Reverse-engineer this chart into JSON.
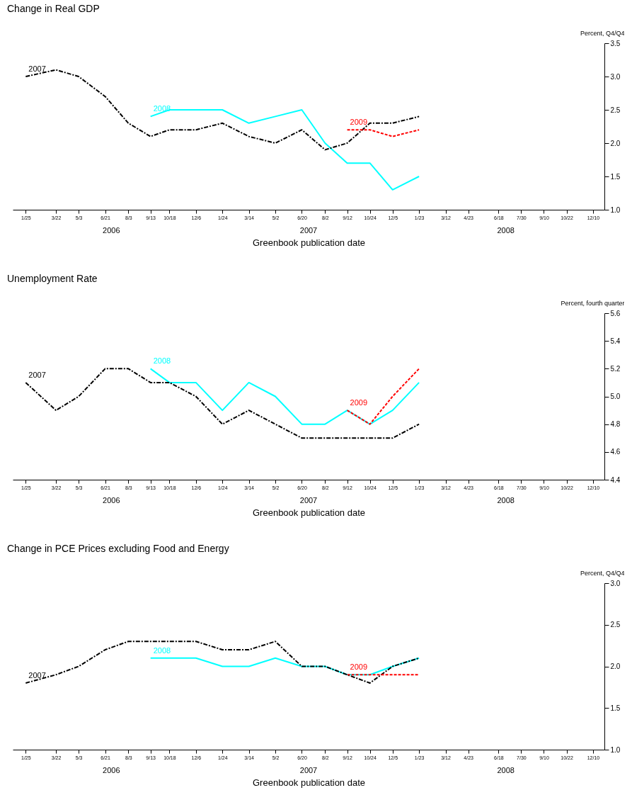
{
  "chart_data": [
    {
      "type": "line",
      "title": "Change in Real GDP",
      "xlabel": "Greenbook publication date",
      "ylabel": "Percent, Q4/Q4",
      "x": [
        "2006-01-25",
        "2006-03-22",
        "2006-05-03",
        "2006-06-21",
        "2006-08-03",
        "2006-09-13",
        "2006-10-18",
        "2006-12-06",
        "2007-01-24",
        "2007-03-14",
        "2007-05-02",
        "2007-06-20",
        "2007-08-02",
        "2007-09-12",
        "2007-10-24",
        "2007-12-05",
        "2008-01-23"
      ],
      "xlim": [
        "2006-01-01",
        "2008-12-31"
      ],
      "xticks": [
        {
          "value": "2006-01-25",
          "label": "1/25"
        },
        {
          "value": "2006-03-22",
          "label": "3/22"
        },
        {
          "value": "2006-05-03",
          "label": "5/3"
        },
        {
          "value": "2006-06-21",
          "label": "6/21"
        },
        {
          "value": "2006-08-03",
          "label": "8/3"
        },
        {
          "value": "2006-09-13",
          "label": "9/13"
        },
        {
          "value": "2006-10-18",
          "label": "10/18"
        },
        {
          "value": "2006-12-06",
          "label": "12/6"
        },
        {
          "value": "2007-01-24",
          "label": "1/24"
        },
        {
          "value": "2007-03-14",
          "label": "3/14"
        },
        {
          "value": "2007-05-02",
          "label": "5/2"
        },
        {
          "value": "2007-06-20",
          "label": "6/20"
        },
        {
          "value": "2007-08-02",
          "label": "8/2"
        },
        {
          "value": "2007-09-12",
          "label": "9/12"
        },
        {
          "value": "2007-10-24",
          "label": "10/24"
        },
        {
          "value": "2007-12-05",
          "label": "12/5"
        },
        {
          "value": "2008-01-23",
          "label": "1/23"
        },
        {
          "value": "2008-03-12",
          "label": "3/12"
        },
        {
          "value": "2008-04-23",
          "label": "4/23"
        },
        {
          "value": "2008-06-18",
          "label": "6/18"
        },
        {
          "value": "2008-07-30",
          "label": "7/30"
        },
        {
          "value": "2008-09-10",
          "label": "9/10"
        },
        {
          "value": "2008-10-22",
          "label": "10/22"
        },
        {
          "value": "2008-12-10",
          "label": "12/10"
        }
      ],
      "ylim": [
        1.0,
        3.5
      ],
      "yticks": [
        {
          "value": 1,
          "label": "1.0"
        },
        {
          "value": 1.5,
          "label": "1.5"
        },
        {
          "value": 2,
          "label": "2.0"
        },
        {
          "value": 2.5,
          "label": "2.5"
        },
        {
          "value": 3,
          "label": "3.0"
        },
        {
          "value": 3.5,
          "label": "3.5"
        }
      ],
      "series": [
        {
          "name": "2007",
          "color": "#000000",
          "line_style": "dashdot",
          "values": [
            3.0,
            3.1,
            3.0,
            2.7,
            2.3,
            2.1,
            2.2,
            2.2,
            2.3,
            2.1,
            2.0,
            2.2,
            1.9,
            2.0,
            2.3,
            2.3,
            2.4
          ]
        },
        {
          "name": "2008",
          "color": "#00ffff",
          "line_style": "solid",
          "values": [
            null,
            null,
            null,
            null,
            null,
            2.4,
            2.5,
            2.5,
            2.5,
            2.3,
            2.4,
            2.5,
            2.0,
            1.7,
            1.7,
            1.3,
            1.5
          ]
        },
        {
          "name": "2009",
          "color": "#ff0000",
          "line_style": "dashed",
          "values": [
            null,
            null,
            null,
            null,
            null,
            null,
            null,
            null,
            null,
            null,
            null,
            null,
            null,
            2.2,
            2.2,
            2.1,
            2.2
          ]
        }
      ],
      "annotations": [
        "2006",
        "2007",
        "2008"
      ]
    },
    {
      "type": "line",
      "title": "Unemployment Rate",
      "xlabel": "Greenbook publication date",
      "ylabel": "Percent, fourth quarter",
      "x": [
        "2006-01-25",
        "2006-03-22",
        "2006-05-03",
        "2006-06-21",
        "2006-08-03",
        "2006-09-13",
        "2006-10-18",
        "2006-12-06",
        "2007-01-24",
        "2007-03-14",
        "2007-05-02",
        "2007-06-20",
        "2007-08-02",
        "2007-09-12",
        "2007-10-24",
        "2007-12-05",
        "2008-01-23"
      ],
      "xlim": [
        "2006-01-01",
        "2008-12-31"
      ],
      "xticks": [
        {
          "value": "2006-01-25",
          "label": "1/25"
        },
        {
          "value": "2006-03-22",
          "label": "3/22"
        },
        {
          "value": "2006-05-03",
          "label": "5/3"
        },
        {
          "value": "2006-06-21",
          "label": "6/21"
        },
        {
          "value": "2006-08-03",
          "label": "8/3"
        },
        {
          "value": "2006-09-13",
          "label": "9/13"
        },
        {
          "value": "2006-10-18",
          "label": "10/18"
        },
        {
          "value": "2006-12-06",
          "label": "12/6"
        },
        {
          "value": "2007-01-24",
          "label": "1/24"
        },
        {
          "value": "2007-03-14",
          "label": "3/14"
        },
        {
          "value": "2007-05-02",
          "label": "5/2"
        },
        {
          "value": "2007-06-20",
          "label": "6/20"
        },
        {
          "value": "2007-08-02",
          "label": "8/2"
        },
        {
          "value": "2007-09-12",
          "label": "9/12"
        },
        {
          "value": "2007-10-24",
          "label": "10/24"
        },
        {
          "value": "2007-12-05",
          "label": "12/5"
        },
        {
          "value": "2008-01-23",
          "label": "1/23"
        },
        {
          "value": "2008-03-12",
          "label": "3/12"
        },
        {
          "value": "2008-04-23",
          "label": "4/23"
        },
        {
          "value": "2008-06-18",
          "label": "6/18"
        },
        {
          "value": "2008-07-30",
          "label": "7/30"
        },
        {
          "value": "2008-09-10",
          "label": "9/10"
        },
        {
          "value": "2008-10-22",
          "label": "10/22"
        },
        {
          "value": "2008-12-10",
          "label": "12/10"
        }
      ],
      "ylim": [
        4.4,
        5.6
      ],
      "yticks": [
        4.4,
        4.6,
        4.8,
        {
          "value": 5,
          "label": "5.0"
        },
        5.2,
        5.4,
        5.6
      ],
      "series": [
        {
          "name": "2007",
          "color": "#000000",
          "line_style": "dashdot",
          "values": [
            5.1,
            4.9,
            5.0,
            5.2,
            5.2,
            5.1,
            5.1,
            5.0,
            4.8,
            4.9,
            4.8,
            4.7,
            4.7,
            4.7,
            4.7,
            4.7,
            4.8
          ]
        },
        {
          "name": "2008",
          "color": "#00ffff",
          "line_style": "solid",
          "values": [
            null,
            null,
            null,
            null,
            null,
            5.2,
            5.1,
            5.1,
            4.9,
            5.1,
            5.0,
            4.8,
            4.8,
            4.9,
            4.8,
            4.9,
            5.1
          ]
        },
        {
          "name": "2009",
          "color": "#ff0000",
          "line_style": "dashed",
          "values": [
            null,
            null,
            null,
            null,
            null,
            null,
            null,
            null,
            null,
            null,
            null,
            null,
            null,
            4.9,
            4.8,
            5.0,
            5.2
          ]
        }
      ],
      "annotations": [
        "2006",
        "2007",
        "2008"
      ]
    },
    {
      "type": "line",
      "title": "Change in PCE Prices excluding Food and Energy",
      "xlabel": "Greenbook publication date",
      "ylabel": "Percent, Q4/Q4",
      "x": [
        "2006-01-25",
        "2006-03-22",
        "2006-05-03",
        "2006-06-21",
        "2006-08-03",
        "2006-09-13",
        "2006-10-18",
        "2006-12-06",
        "2007-01-24",
        "2007-03-14",
        "2007-05-02",
        "2007-06-20",
        "2007-08-02",
        "2007-09-12",
        "2007-10-24",
        "2007-12-05",
        "2008-01-23"
      ],
      "xlim": [
        "2006-01-01",
        "2008-12-31"
      ],
      "xticks": [
        {
          "value": "2006-01-25",
          "label": "1/25"
        },
        {
          "value": "2006-03-22",
          "label": "3/22"
        },
        {
          "value": "2006-05-03",
          "label": "5/3"
        },
        {
          "value": "2006-06-21",
          "label": "6/21"
        },
        {
          "value": "2006-08-03",
          "label": "8/3"
        },
        {
          "value": "2006-09-13",
          "label": "9/13"
        },
        {
          "value": "2006-10-18",
          "label": "10/18"
        },
        {
          "value": "2006-12-06",
          "label": "12/6"
        },
        {
          "value": "2007-01-24",
          "label": "1/24"
        },
        {
          "value": "2007-03-14",
          "label": "3/14"
        },
        {
          "value": "2007-05-02",
          "label": "5/2"
        },
        {
          "value": "2007-06-20",
          "label": "6/20"
        },
        {
          "value": "2007-08-02",
          "label": "8/2"
        },
        {
          "value": "2007-09-12",
          "label": "9/12"
        },
        {
          "value": "2007-10-24",
          "label": "10/24"
        },
        {
          "value": "2007-12-05",
          "label": "12/5"
        },
        {
          "value": "2008-01-23",
          "label": "1/23"
        },
        {
          "value": "2008-03-12",
          "label": "3/12"
        },
        {
          "value": "2008-04-23",
          "label": "4/23"
        },
        {
          "value": "2008-06-18",
          "label": "6/18"
        },
        {
          "value": "2008-07-30",
          "label": "7/30"
        },
        {
          "value": "2008-09-10",
          "label": "9/10"
        },
        {
          "value": "2008-10-22",
          "label": "10/22"
        },
        {
          "value": "2008-12-10",
          "label": "12/10"
        }
      ],
      "ylim": [
        1.0,
        3.0
      ],
      "yticks": [
        {
          "value": 1,
          "label": "1.0"
        },
        {
          "value": 1.5,
          "label": "1.5"
        },
        {
          "value": 2,
          "label": "2.0"
        },
        {
          "value": 2.5,
          "label": "2.5"
        },
        {
          "value": 3,
          "label": "3.0"
        }
      ],
      "series": [
        {
          "name": "2007",
          "color": "#000000",
          "line_style": "dashdot",
          "values": [
            1.8,
            1.9,
            2.0,
            2.2,
            2.3,
            2.3,
            2.3,
            2.3,
            2.2,
            2.2,
            2.3,
            2.0,
            2.0,
            1.9,
            1.8,
            2.0,
            2.1
          ]
        },
        {
          "name": "2008",
          "color": "#00ffff",
          "line_style": "solid",
          "values": [
            null,
            null,
            null,
            null,
            null,
            2.1,
            2.1,
            2.1,
            2.0,
            2.0,
            2.1,
            2.0,
            2.0,
            1.9,
            1.9,
            2.0,
            2.1
          ]
        },
        {
          "name": "2009",
          "color": "#ff0000",
          "line_style": "dashed",
          "values": [
            null,
            null,
            null,
            null,
            null,
            null,
            null,
            null,
            null,
            null,
            null,
            null,
            null,
            1.9,
            1.9,
            1.9,
            1.9
          ]
        }
      ],
      "annotations": [
        "2006",
        "2007",
        "2008"
      ]
    }
  ]
}
